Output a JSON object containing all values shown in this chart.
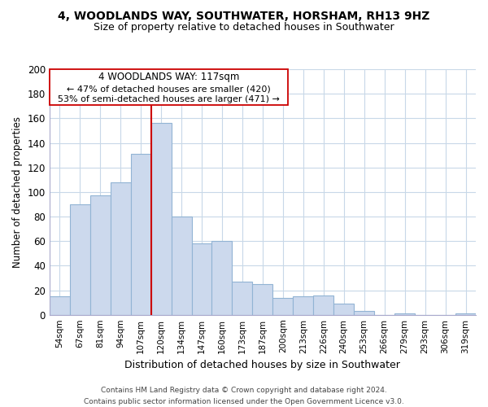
{
  "title": "4, WOODLANDS WAY, SOUTHWATER, HORSHAM, RH13 9HZ",
  "subtitle": "Size of property relative to detached houses in Southwater",
  "xlabel": "Distribution of detached houses by size in Southwater",
  "ylabel": "Number of detached properties",
  "bar_color": "#ccd9ed",
  "bar_edge_color": "#92b4d4",
  "categories": [
    "54sqm",
    "67sqm",
    "81sqm",
    "94sqm",
    "107sqm",
    "120sqm",
    "134sqm",
    "147sqm",
    "160sqm",
    "173sqm",
    "187sqm",
    "200sqm",
    "213sqm",
    "226sqm",
    "240sqm",
    "253sqm",
    "266sqm",
    "279sqm",
    "293sqm",
    "306sqm",
    "319sqm"
  ],
  "values": [
    15,
    90,
    97,
    108,
    131,
    156,
    80,
    58,
    60,
    27,
    25,
    14,
    15,
    16,
    9,
    3,
    0,
    1,
    0,
    0,
    1
  ],
  "vline_index": 5,
  "vline_color": "#cc0000",
  "annotation_title": "4 WOODLANDS WAY: 117sqm",
  "annotation_line1": "← 47% of detached houses are smaller (420)",
  "annotation_line2": "53% of semi-detached houses are larger (471) →",
  "footer_line1": "Contains HM Land Registry data © Crown copyright and database right 2024.",
  "footer_line2": "Contains public sector information licensed under the Open Government Licence v3.0.",
  "ylim": [
    0,
    200
  ],
  "yticks": [
    0,
    20,
    40,
    60,
    80,
    100,
    120,
    140,
    160,
    180,
    200
  ],
  "background_color": "#ffffff",
  "grid_color": "#c8d8e8",
  "title_fontsize": 10,
  "subtitle_fontsize": 9
}
